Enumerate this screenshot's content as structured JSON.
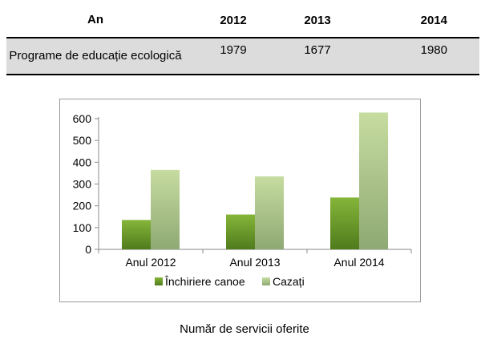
{
  "table": {
    "header": [
      "An",
      "2012",
      "2013",
      "2014"
    ],
    "rows": [
      [
        "Programe de educație ecologică",
        "1979",
        "1677",
        "1980"
      ]
    ]
  },
  "chart_data": {
    "type": "bar",
    "title": "",
    "xlabel": "",
    "ylabel": "",
    "categories": [
      "Anul 2012",
      "Anul 2013",
      "Anul 2014"
    ],
    "series": [
      {
        "name": "Închiriere canoe",
        "values": [
          135,
          160,
          238
        ],
        "color": "#6e9a2c"
      },
      {
        "name": "Cazați",
        "values": [
          365,
          335,
          628
        ],
        "color": "#b9d38c"
      }
    ],
    "ylim": [
      0,
      600
    ],
    "yticks": [
      0,
      100,
      200,
      300,
      400,
      500,
      600
    ],
    "grid": false,
    "legend": "bottom"
  },
  "caption": "Număr de servicii oferite"
}
